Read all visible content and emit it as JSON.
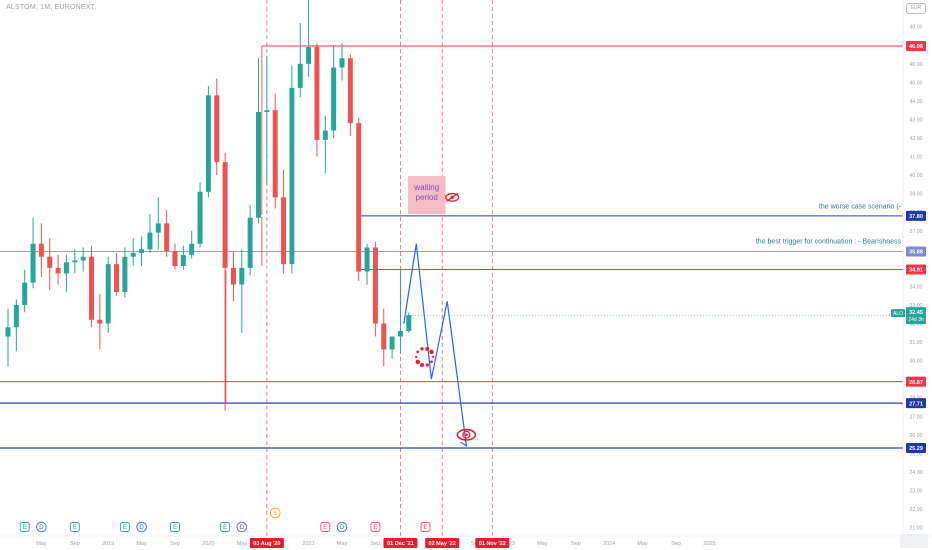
{
  "header": {
    "symbol": "ALSTOM, 1M, EURONEXT",
    "currency": "EUR"
  },
  "chart_data": {
    "type": "candlestick",
    "title": "ALSTOM, 1M, EURONEXT",
    "y_axis": {
      "range": [
        19.8,
        50.0
      ],
      "tick_labels": [
        "48.00",
        "47.00",
        "46.00",
        "45.00",
        "44.00",
        "43.00",
        "42.00",
        "41.00",
        "40.00",
        "39.00",
        "38.00",
        "37.00",
        "36.00",
        "35.00",
        "34.00",
        "33.00",
        "32.00",
        "31.00",
        "30.00",
        "29.00",
        "28.00",
        "27.00",
        "26.00",
        "25.00",
        "24.00",
        "23.00",
        "22.00",
        "21.00",
        "20.00"
      ]
    },
    "x_axis": {
      "tick_labels": [
        {
          "label": "May",
          "i": 4
        },
        {
          "label": "Sep",
          "i": 8
        },
        {
          "label": "2019",
          "i": 12
        },
        {
          "label": "May",
          "i": 16
        },
        {
          "label": "Sep",
          "i": 20
        },
        {
          "label": "2020",
          "i": 24
        },
        {
          "label": "May",
          "i": 28
        },
        {
          "label": "2021",
          "i": 36
        },
        {
          "label": "May",
          "i": 40
        },
        {
          "label": "Sep",
          "i": 44
        },
        {
          "label": "2022",
          "i": 48
        },
        {
          "label": "May",
          "i": 52
        },
        {
          "label": "Sep",
          "i": 56
        },
        {
          "label": "2023",
          "i": 60
        },
        {
          "label": "May",
          "i": 64
        },
        {
          "label": "Sep",
          "i": 68
        },
        {
          "label": "2024",
          "i": 72
        },
        {
          "label": "May",
          "i": 76
        },
        {
          "label": "Sep",
          "i": 80
        },
        {
          "label": "2025",
          "i": 84
        }
      ],
      "date_markers": [
        {
          "label": "03 Aug '20",
          "i": 31
        },
        {
          "label": "01 Dec '21",
          "i": 47
        },
        {
          "label": "02 May '22",
          "i": 52
        },
        {
          "label": "01 Nov '22",
          "i": 58
        }
      ]
    },
    "candles": [
      {
        "o": 31.3,
        "h": 32.8,
        "l": 29.7,
        "c": 31.8
      },
      {
        "o": 31.8,
        "h": 33.3,
        "l": 30.5,
        "c": 33.0
      },
      {
        "o": 33.0,
        "h": 34.9,
        "l": 32.6,
        "c": 34.2
      },
      {
        "o": 34.2,
        "h": 37.7,
        "l": 33.9,
        "c": 36.3
      },
      {
        "o": 36.3,
        "h": 37.4,
        "l": 34.5,
        "c": 35.6
      },
      {
        "o": 35.6,
        "h": 36.6,
        "l": 33.8,
        "c": 35.0
      },
      {
        "o": 35.0,
        "h": 35.7,
        "l": 34.1,
        "c": 34.7
      },
      {
        "o": 34.7,
        "h": 35.7,
        "l": 33.7,
        "c": 35.3
      },
      {
        "o": 35.3,
        "h": 36.0,
        "l": 34.7,
        "c": 35.4
      },
      {
        "o": 35.4,
        "h": 36.1,
        "l": 34.8,
        "c": 35.6
      },
      {
        "o": 35.6,
        "h": 36.2,
        "l": 31.8,
        "c": 32.2
      },
      {
        "o": 32.2,
        "h": 33.6,
        "l": 30.6,
        "c": 32.0
      },
      {
        "o": 32.0,
        "h": 35.6,
        "l": 31.5,
        "c": 35.2
      },
      {
        "o": 35.2,
        "h": 35.8,
        "l": 33.5,
        "c": 33.7
      },
      {
        "o": 33.7,
        "h": 36.1,
        "l": 33.4,
        "c": 35.6
      },
      {
        "o": 35.6,
        "h": 36.6,
        "l": 35.1,
        "c": 35.8
      },
      {
        "o": 35.8,
        "h": 36.7,
        "l": 35.1,
        "c": 36.0
      },
      {
        "o": 36.0,
        "h": 37.9,
        "l": 35.8,
        "c": 36.9
      },
      {
        "o": 36.9,
        "h": 38.8,
        "l": 36.0,
        "c": 37.4
      },
      {
        "o": 37.4,
        "h": 38.1,
        "l": 35.6,
        "c": 35.9
      },
      {
        "o": 35.9,
        "h": 36.3,
        "l": 34.9,
        "c": 35.1
      },
      {
        "o": 35.1,
        "h": 36.2,
        "l": 34.9,
        "c": 35.7
      },
      {
        "o": 35.7,
        "h": 37.0,
        "l": 35.5,
        "c": 36.3
      },
      {
        "o": 36.3,
        "h": 39.6,
        "l": 36.1,
        "c": 39.1
      },
      {
        "o": 39.1,
        "h": 44.8,
        "l": 38.8,
        "c": 44.3
      },
      {
        "o": 44.3,
        "h": 45.2,
        "l": 40.0,
        "c": 40.7
      },
      {
        "o": 40.7,
        "h": 41.2,
        "l": 27.3,
        "c": 35.0
      },
      {
        "o": 35.0,
        "h": 35.9,
        "l": 33.2,
        "c": 34.1
      },
      {
        "o": 34.1,
        "h": 36.0,
        "l": 31.5,
        "c": 35.0
      },
      {
        "o": 35.0,
        "h": 38.4,
        "l": 34.6,
        "c": 37.7
      },
      {
        "o": 37.7,
        "h": 46.3,
        "l": 37.4,
        "c": 43.4
      },
      {
        "o": 43.4,
        "h": 46.4,
        "l": 39.5,
        "c": 43.5
      },
      {
        "o": 43.5,
        "h": 44.4,
        "l": 38.2,
        "c": 38.8
      },
      {
        "o": 38.8,
        "h": 40.3,
        "l": 34.7,
        "c": 35.2
      },
      {
        "o": 35.2,
        "h": 45.9,
        "l": 34.7,
        "c": 44.7
      },
      {
        "o": 44.7,
        "h": 48.2,
        "l": 44.2,
        "c": 46.0
      },
      {
        "o": 46.0,
        "h": 49.8,
        "l": 45.3,
        "c": 46.9
      },
      {
        "o": 46.9,
        "h": 47.1,
        "l": 41.0,
        "c": 41.9
      },
      {
        "o": 41.9,
        "h": 43.2,
        "l": 40.1,
        "c": 42.4
      },
      {
        "o": 42.4,
        "h": 47.0,
        "l": 42.0,
        "c": 45.8
      },
      {
        "o": 45.8,
        "h": 47.1,
        "l": 45.1,
        "c": 46.3
      },
      {
        "o": 46.3,
        "h": 46.5,
        "l": 42.1,
        "c": 42.8
      },
      {
        "o": 42.8,
        "h": 43.1,
        "l": 34.3,
        "c": 34.8
      },
      {
        "o": 34.8,
        "h": 36.3,
        "l": 34.1,
        "c": 36.1
      },
      {
        "o": 36.1,
        "h": 36.4,
        "l": 31.3,
        "c": 32.0
      },
      {
        "o": 32.0,
        "h": 32.8,
        "l": 29.7,
        "c": 30.6
      },
      {
        "o": 30.6,
        "h": 31.2,
        "l": 30.1,
        "c": 31.3
      },
      {
        "o": 31.3,
        "h": 34.9,
        "l": 30.4,
        "c": 31.6
      },
      {
        "o": 31.6,
        "h": 32.6,
        "l": 31.5,
        "c": 32.45
      }
    ],
    "horizontal_lines": [
      {
        "value": 46.96,
        "label": "46.96",
        "color": "#f23645",
        "badge": "#f23645",
        "w": 1
      },
      {
        "value": 37.8,
        "label": "37.80",
        "color": "#2a3fb5",
        "badge": "#1f3aa8",
        "w": 1
      },
      {
        "value": 35.88,
        "label": "35.88",
        "color": "#9aa0ab",
        "badge": "#7d8ad1",
        "w": 1
      },
      {
        "value": 34.91,
        "label": "34.91",
        "color": "#f23645",
        "badge": "#f23645",
        "w": 1
      },
      {
        "value": 28.87,
        "label": "28.87",
        "color": "#f23645",
        "badge": "#f23645",
        "w": 1
      },
      {
        "value": 27.71,
        "label": "27.71",
        "color": "#2a3fb5",
        "badge": "#1f3aa8",
        "w": 1.2
      },
      {
        "value": 25.29,
        "label": "25.29",
        "color": "#2a3fb5",
        "badge": "#1f3aa8",
        "w": 1.2
      }
    ],
    "price_marker": {
      "symbol": "ALO",
      "value": 32.45,
      "label": "32.45",
      "countdown": "24d 3h"
    },
    "annotations": [
      {
        "text": "the worse case scenario (-",
        "y": 38.2,
        "color": "#2a7f8a"
      },
      {
        "text": "the best trigger for continuation : - Bearishness",
        "y": 36.3,
        "color": "#2a7f8a"
      }
    ],
    "waiting_box": {
      "line1": "waiting",
      "line2": "period",
      "y_top": 39.95,
      "y_bottom": 37.9
    },
    "projection_path": [
      [
        47.4,
        32.0
      ],
      [
        48.9,
        36.3
      ],
      [
        50.7,
        29.0
      ],
      [
        52.6,
        33.2
      ],
      [
        54.9,
        25.4
      ]
    ],
    "events": [
      {
        "type": "E",
        "i": 2
      },
      {
        "type": "D",
        "i": 4
      },
      {
        "type": "E",
        "i": 8
      },
      {
        "type": "E",
        "i": 14
      },
      {
        "type": "D",
        "i": 16
      },
      {
        "type": "E",
        "i": 20
      },
      {
        "type": "E",
        "i": 26
      },
      {
        "type": "D",
        "i": 28
      },
      {
        "type": "E",
        "i": 38
      },
      {
        "type": "D",
        "i": 40
      },
      {
        "type": "E",
        "i": 44
      },
      {
        "type": "E",
        "i": 50
      }
    ],
    "split_event": {
      "type": "S",
      "i": 32
    }
  }
}
